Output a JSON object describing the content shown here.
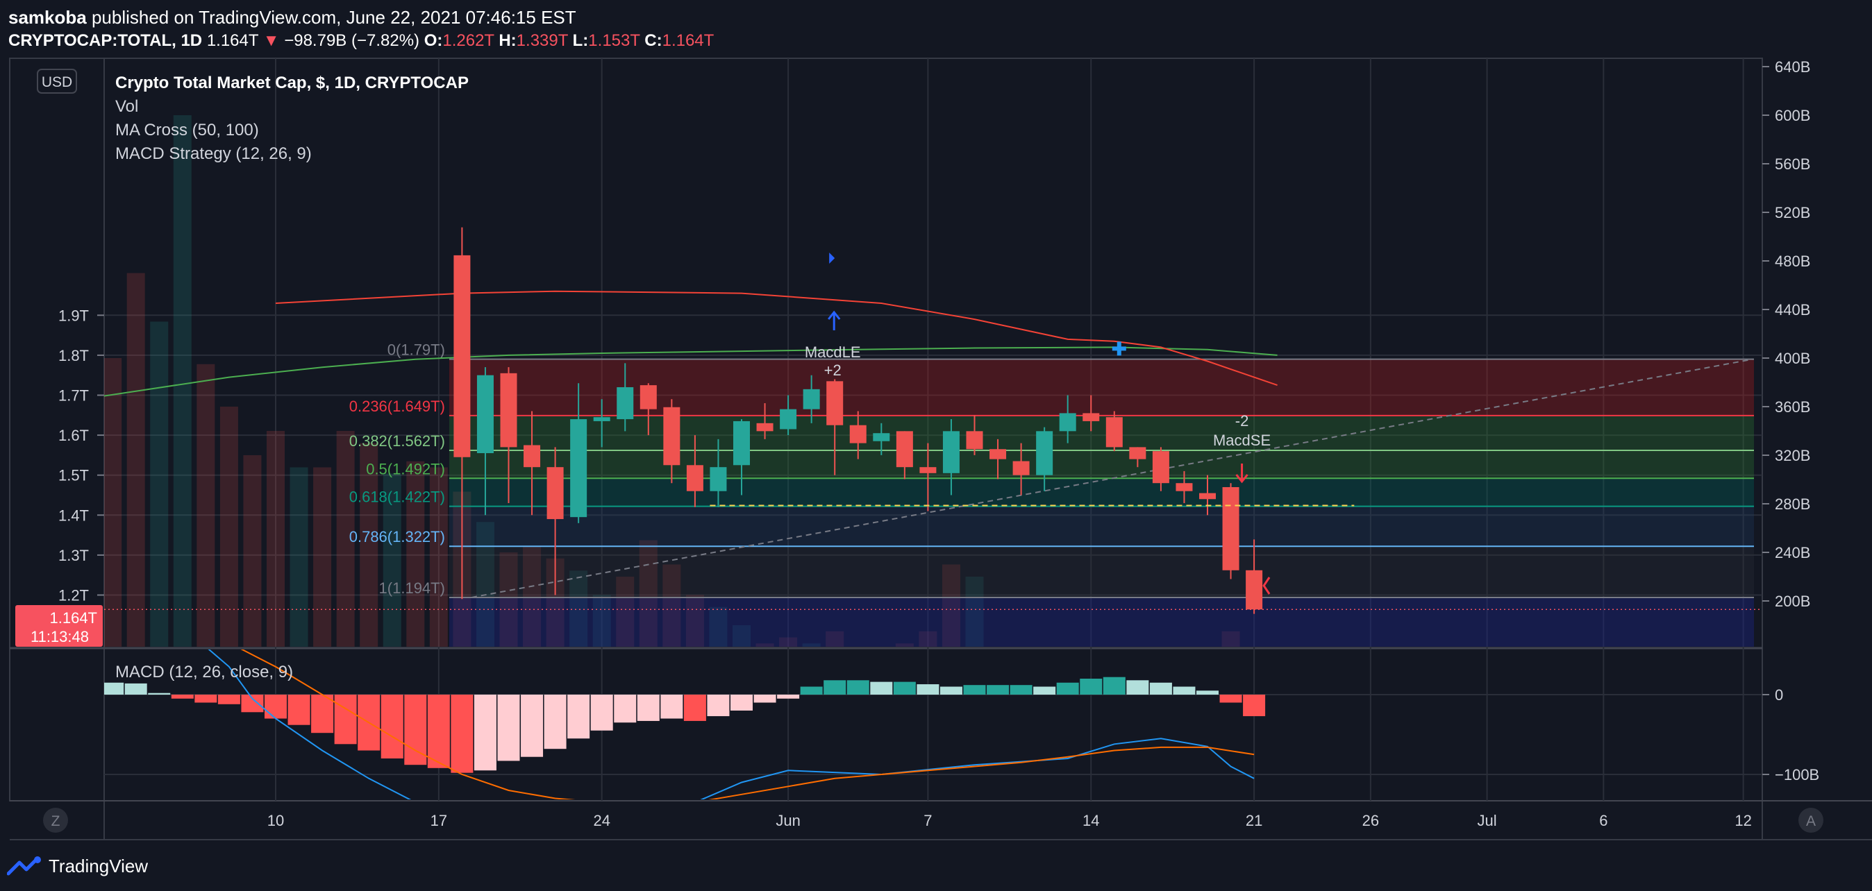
{
  "header": {
    "author": "samkoba",
    "published": " published on TradingView.com, June 22, 2021 07:46:15 EST",
    "symbol": "CRYPTOCAP:TOTAL, 1D",
    "last": "1.164T",
    "change": "−98.79B (−7.82%)",
    "o_label": "O:",
    "o_value": "1.262T",
    "h_label": "H:",
    "h_value": "1.339T",
    "l_label": "L:",
    "l_value": "1.153T",
    "c_label": "C:",
    "c_value": "1.164T"
  },
  "legend": {
    "title": "Crypto Total Market Cap, $, 1D, CRYPTOCAP",
    "vol": "Vol",
    "ma": "MA Cross (50, 100)",
    "macd_strategy": "MACD Strategy (12, 26, 9)",
    "macd_pane": "MACD (12, 26, close, 9)"
  },
  "currency_button": "USD",
  "price_tag": {
    "value": "1.164T",
    "countdown": "11:13:48"
  },
  "zoom_z": "Z",
  "auto_a": "A",
  "footer": {
    "brand": "TradingView"
  },
  "colors": {
    "bg": "#131722",
    "up": "#26a69a",
    "down": "#ef5350",
    "grid": "#2a2e39",
    "ma_short": "#4caf50",
    "ma_long": "#f44336",
    "macd_line": "#2196f3",
    "signal_line": "#ff6d00"
  },
  "chart_data": {
    "type": "candlestick",
    "price_axis": {
      "ticks": [
        "1.2T",
        "1.3T",
        "1.4T",
        "1.5T",
        "1.6T",
        "1.7T",
        "1.8T",
        "1.9T"
      ],
      "values": [
        1.2,
        1.3,
        1.4,
        1.5,
        1.6,
        1.7,
        1.8,
        1.9
      ]
    },
    "volume_axis": {
      "ticks": [
        "200B",
        "240B",
        "280B",
        "320B",
        "360B",
        "400B",
        "440B",
        "480B",
        "520B",
        "560B",
        "600B",
        "640B"
      ],
      "values": [
        200,
        240,
        280,
        320,
        360,
        400,
        440,
        480,
        520,
        560,
        600,
        640
      ]
    },
    "macd_axis": {
      "ticks": [
        "0",
        "−100B"
      ],
      "values": [
        0,
        -100
      ]
    },
    "time_axis": {
      "labels": [
        "10",
        "17",
        "24",
        "Jun",
        "7",
        "14",
        "21",
        "26",
        "Jul",
        "6",
        "12"
      ],
      "day_offsets": [
        0,
        7,
        14,
        22,
        28,
        35,
        42,
        47,
        52,
        57,
        63
      ]
    },
    "candles": [
      {
        "d": 8,
        "o": 2.05,
        "h": 2.12,
        "l": 1.19,
        "c": 1.545
      },
      {
        "d": 9,
        "o": 1.555,
        "h": 1.77,
        "l": 1.4,
        "c": 1.75
      },
      {
        "d": 10,
        "o": 1.755,
        "h": 1.77,
        "l": 1.43,
        "c": 1.57
      },
      {
        "d": 11,
        "o": 1.575,
        "h": 1.66,
        "l": 1.4,
        "c": 1.52
      },
      {
        "d": 12,
        "o": 1.52,
        "h": 1.57,
        "l": 1.2,
        "c": 1.39
      },
      {
        "d": 13,
        "o": 1.395,
        "h": 1.73,
        "l": 1.38,
        "c": 1.64
      },
      {
        "d": 14,
        "o": 1.635,
        "h": 1.69,
        "l": 1.57,
        "c": 1.645
      },
      {
        "d": 15,
        "o": 1.64,
        "h": 1.78,
        "l": 1.61,
        "c": 1.72
      },
      {
        "d": 16,
        "o": 1.725,
        "h": 1.73,
        "l": 1.6,
        "c": 1.665
      },
      {
        "d": 17,
        "o": 1.67,
        "h": 1.69,
        "l": 1.48,
        "c": 1.525
      },
      {
        "d": 18,
        "o": 1.525,
        "h": 1.6,
        "l": 1.42,
        "c": 1.46
      },
      {
        "d": 19,
        "o": 1.46,
        "h": 1.59,
        "l": 1.42,
        "c": 1.52
      },
      {
        "d": 20,
        "o": 1.525,
        "h": 1.64,
        "l": 1.45,
        "c": 1.635
      },
      {
        "d": 21,
        "o": 1.63,
        "h": 1.68,
        "l": 1.59,
        "c": 1.61
      },
      {
        "d": 22,
        "o": 1.615,
        "h": 1.7,
        "l": 1.6,
        "c": 1.665
      },
      {
        "d": 23,
        "o": 1.665,
        "h": 1.75,
        "l": 1.63,
        "c": 1.715
      },
      {
        "d": 24,
        "o": 1.735,
        "h": 1.74,
        "l": 1.5,
        "c": 1.625
      },
      {
        "d": 25,
        "o": 1.625,
        "h": 1.66,
        "l": 1.54,
        "c": 1.58
      },
      {
        "d": 26,
        "o": 1.585,
        "h": 1.63,
        "l": 1.55,
        "c": 1.605
      },
      {
        "d": 27,
        "o": 1.61,
        "h": 1.61,
        "l": 1.49,
        "c": 1.52
      },
      {
        "d": 28,
        "o": 1.52,
        "h": 1.58,
        "l": 1.41,
        "c": 1.505
      },
      {
        "d": 29,
        "o": 1.505,
        "h": 1.64,
        "l": 1.45,
        "c": 1.61
      },
      {
        "d": 30,
        "o": 1.61,
        "h": 1.65,
        "l": 1.55,
        "c": 1.565
      },
      {
        "d": 31,
        "o": 1.565,
        "h": 1.59,
        "l": 1.49,
        "c": 1.54
      },
      {
        "d": 32,
        "o": 1.535,
        "h": 1.58,
        "l": 1.45,
        "c": 1.5
      },
      {
        "d": 33,
        "o": 1.5,
        "h": 1.62,
        "l": 1.46,
        "c": 1.61
      },
      {
        "d": 34,
        "o": 1.61,
        "h": 1.7,
        "l": 1.58,
        "c": 1.655
      },
      {
        "d": 35,
        "o": 1.655,
        "h": 1.7,
        "l": 1.61,
        "c": 1.635
      },
      {
        "d": 36,
        "o": 1.645,
        "h": 1.66,
        "l": 1.56,
        "c": 1.57
      },
      {
        "d": 37,
        "o": 1.57,
        "h": 1.57,
        "l": 1.52,
        "c": 1.54
      },
      {
        "d": 38,
        "o": 1.56,
        "h": 1.57,
        "l": 1.46,
        "c": 1.48
      },
      {
        "d": 39,
        "o": 1.48,
        "h": 1.51,
        "l": 1.43,
        "c": 1.46
      },
      {
        "d": 40,
        "o": 1.455,
        "h": 1.5,
        "l": 1.4,
        "c": 1.44
      },
      {
        "d": 41,
        "o": 1.47,
        "h": 1.48,
        "l": 1.24,
        "c": 1.262
      },
      {
        "d": 42,
        "o": 1.262,
        "h": 1.339,
        "l": 1.153,
        "c": 1.164
      }
    ],
    "volume": [
      {
        "d": -14,
        "v": 330,
        "up": true
      },
      {
        "d": -13,
        "v": 500,
        "up": true
      },
      {
        "d": -12,
        "v": 530,
        "up": false
      },
      {
        "d": -11,
        "v": 540,
        "up": true
      },
      {
        "d": -10,
        "v": 515,
        "up": true
      },
      {
        "d": -9,
        "v": 520,
        "up": false
      },
      {
        "d": -8,
        "v": 515,
        "up": false
      },
      {
        "d": -7,
        "v": 400,
        "up": false
      },
      {
        "d": -6,
        "v": 470,
        "up": false
      },
      {
        "d": -5,
        "v": 430,
        "up": true
      },
      {
        "d": -4,
        "v": 600,
        "up": true
      },
      {
        "d": -3,
        "v": 395,
        "up": false
      },
      {
        "d": -2,
        "v": 360,
        "up": false
      },
      {
        "d": -1,
        "v": 320,
        "up": false
      },
      {
        "d": 0,
        "v": 340,
        "up": false
      },
      {
        "d": 1,
        "v": 310,
        "up": true
      },
      {
        "d": 2,
        "v": 310,
        "up": false
      },
      {
        "d": 3,
        "v": 340,
        "up": false
      },
      {
        "d": 4,
        "v": 330,
        "up": false
      },
      {
        "d": 5,
        "v": 305,
        "up": true
      },
      {
        "d": 6,
        "v": 315,
        "up": false
      },
      {
        "d": 7,
        "v": 310,
        "up": false
      },
      {
        "d": 8,
        "v": 290,
        "up": false
      },
      {
        "d": 9,
        "v": 265,
        "up": true
      },
      {
        "d": 10,
        "v": 240,
        "up": false
      },
      {
        "d": 11,
        "v": 245,
        "up": false
      },
      {
        "d": 12,
        "v": 235,
        "up": false
      },
      {
        "d": 13,
        "v": 225,
        "up": true
      },
      {
        "d": 14,
        "v": 205,
        "up": true
      },
      {
        "d": 15,
        "v": 220,
        "up": false
      },
      {
        "d": 16,
        "v": 250,
        "up": false
      },
      {
        "d": 17,
        "v": 230,
        "up": false
      },
      {
        "d": 18,
        "v": 205,
        "up": false
      },
      {
        "d": 19,
        "v": 195,
        "up": true
      },
      {
        "d": 20,
        "v": 180,
        "up": true
      },
      {
        "d": 21,
        "v": 165,
        "up": false
      },
      {
        "d": 22,
        "v": 170,
        "up": false
      },
      {
        "d": 23,
        "v": 165,
        "up": true
      },
      {
        "d": 24,
        "v": 175,
        "up": false
      },
      {
        "d": 25,
        "v": 160,
        "up": false
      },
      {
        "d": 26,
        "v": 150,
        "up": true
      },
      {
        "d": 27,
        "v": 165,
        "up": false
      },
      {
        "d": 28,
        "v": 175,
        "up": false
      },
      {
        "d": 29,
        "v": 230,
        "up": false
      },
      {
        "d": 30,
        "v": 220,
        "up": true
      },
      {
        "d": 31,
        "v": 150,
        "up": false
      },
      {
        "d": 32,
        "v": 140,
        "up": false
      },
      {
        "d": 33,
        "v": 140,
        "up": true
      },
      {
        "d": 34,
        "v": 140,
        "up": true
      },
      {
        "d": 35,
        "v": 130,
        "up": false
      },
      {
        "d": 36,
        "v": 145,
        "up": false
      },
      {
        "d": 37,
        "v": 130,
        "up": false
      },
      {
        "d": 38,
        "v": 130,
        "up": false
      },
      {
        "d": 39,
        "v": 130,
        "up": false
      },
      {
        "d": 40,
        "v": 150,
        "up": false
      },
      {
        "d": 41,
        "v": 175,
        "up": false
      },
      {
        "d": 42,
        "v": 160,
        "up": false
      }
    ],
    "ma_short_50": [
      {
        "d": -14,
        "p": 1.642
      },
      {
        "d": -10,
        "p": 1.675
      },
      {
        "d": -6,
        "p": 1.71
      },
      {
        "d": -2,
        "p": 1.745
      },
      {
        "d": 2,
        "p": 1.77
      },
      {
        "d": 6,
        "p": 1.79
      },
      {
        "d": 10,
        "p": 1.8
      },
      {
        "d": 14,
        "p": 1.805
      },
      {
        "d": 20,
        "p": 1.81
      },
      {
        "d": 26,
        "p": 1.815
      },
      {
        "d": 30,
        "p": 1.818
      },
      {
        "d": 36,
        "p": 1.82
      },
      {
        "d": 40,
        "p": 1.814
      },
      {
        "d": 43,
        "p": 1.8
      }
    ],
    "ma_long_100": [
      {
        "d": 0,
        "p": 1.93
      },
      {
        "d": 8,
        "p": 1.955
      },
      {
        "d": 12,
        "p": 1.96
      },
      {
        "d": 20,
        "p": 1.955
      },
      {
        "d": 26,
        "p": 1.93
      },
      {
        "d": 30,
        "p": 1.89
      },
      {
        "d": 34,
        "p": 1.84
      },
      {
        "d": 36,
        "p": 1.835
      },
      {
        "d": 38,
        "p": 1.82
      },
      {
        "d": 40,
        "p": 1.785
      },
      {
        "d": 43,
        "p": 1.725
      }
    ],
    "ma_cross_day": 36,
    "fib_levels": [
      {
        "label": "0(1.79T)",
        "value": 1.79,
        "color": "#787b86"
      },
      {
        "label": "0.236(1.649T)",
        "value": 1.649,
        "color": "#f23645"
      },
      {
        "label": "0.382(1.562T)",
        "value": 1.562,
        "color": "#81c784"
      },
      {
        "label": "0.5(1.492T)",
        "value": 1.492,
        "color": "#4caf50"
      },
      {
        "label": "0.618(1.422T)",
        "value": 1.422,
        "color": "#089981"
      },
      {
        "label": "0.786(1.322T)",
        "value": 1.322,
        "color": "#64b5f6"
      },
      {
        "label": "1(1.194T)",
        "value": 1.194,
        "color": "#787b86"
      }
    ],
    "macd_hist": [
      {
        "d": -14,
        "v": 22
      },
      {
        "d": -13,
        "v": 20
      },
      {
        "d": -12,
        "v": 20
      },
      {
        "d": -11,
        "v": 20
      },
      {
        "d": -10,
        "v": 18
      },
      {
        "d": -9,
        "v": 18
      },
      {
        "d": -8,
        "v": 17
      },
      {
        "d": -7,
        "v": 15
      },
      {
        "d": -6,
        "v": 14
      },
      {
        "d": -5,
        "v": 2
      },
      {
        "d": -4,
        "v": -5
      },
      {
        "d": -3,
        "v": -10
      },
      {
        "d": -2,
        "v": -12
      },
      {
        "d": -1,
        "v": -22
      },
      {
        "d": 0,
        "v": -30
      },
      {
        "d": 1,
        "v": -38
      },
      {
        "d": 2,
        "v": -48
      },
      {
        "d": 3,
        "v": -62
      },
      {
        "d": 4,
        "v": -70
      },
      {
        "d": 5,
        "v": -80
      },
      {
        "d": 6,
        "v": -88
      },
      {
        "d": 7,
        "v": -92
      },
      {
        "d": 8,
        "v": -98
      },
      {
        "d": 9,
        "v": -95
      },
      {
        "d": 10,
        "v": -83
      },
      {
        "d": 11,
        "v": -78
      },
      {
        "d": 12,
        "v": -68
      },
      {
        "d": 13,
        "v": -55
      },
      {
        "d": 14,
        "v": -45
      },
      {
        "d": 15,
        "v": -35
      },
      {
        "d": 16,
        "v": -33
      },
      {
        "d": 17,
        "v": -30
      },
      {
        "d": 18,
        "v": -33
      },
      {
        "d": 19,
        "v": -27
      },
      {
        "d": 20,
        "v": -20
      },
      {
        "d": 21,
        "v": -10
      },
      {
        "d": 22,
        "v": -5
      },
      {
        "d": 23,
        "v": 10
      },
      {
        "d": 24,
        "v": 18
      },
      {
        "d": 25,
        "v": 18
      },
      {
        "d": 26,
        "v": 16
      },
      {
        "d": 27,
        "v": 16
      },
      {
        "d": 28,
        "v": 13
      },
      {
        "d": 29,
        "v": 10
      },
      {
        "d": 30,
        "v": 12
      },
      {
        "d": 31,
        "v": 12
      },
      {
        "d": 32,
        "v": 12
      },
      {
        "d": 33,
        "v": 10
      },
      {
        "d": 34,
        "v": 15
      },
      {
        "d": 35,
        "v": 20
      },
      {
        "d": 36,
        "v": 22
      },
      {
        "d": 37,
        "v": 18
      },
      {
        "d": 38,
        "v": 15
      },
      {
        "d": 39,
        "v": 10
      },
      {
        "d": 40,
        "v": 5
      },
      {
        "d": 41,
        "v": -10
      },
      {
        "d": 42,
        "v": -27
      }
    ],
    "macd_line": [
      {
        "d": -10,
        "v": 160
      },
      {
        "d": -6,
        "v": 100
      },
      {
        "d": -3,
        "v": 60
      },
      {
        "d": -2,
        "v": 35
      },
      {
        "d": -1,
        "v": -5
      },
      {
        "d": 0,
        "v": -30
      },
      {
        "d": 2,
        "v": -70
      },
      {
        "d": 4,
        "v": -105
      },
      {
        "d": 6,
        "v": -135
      },
      {
        "d": 8,
        "v": -160
      },
      {
        "d": 12,
        "v": -185
      },
      {
        "d": 16,
        "v": -190
      },
      {
        "d": 18,
        "v": -135
      },
      {
        "d": 20,
        "v": -110
      },
      {
        "d": 22,
        "v": -95
      },
      {
        "d": 26,
        "v": -100
      },
      {
        "d": 30,
        "v": -88
      },
      {
        "d": 34,
        "v": -80
      },
      {
        "d": 36,
        "v": -62
      },
      {
        "d": 38,
        "v": -55
      },
      {
        "d": 40,
        "v": -65
      },
      {
        "d": 41,
        "v": -90
      },
      {
        "d": 42,
        "v": -105
      }
    ],
    "signal_line": [
      {
        "d": -2,
        "v": 65
      },
      {
        "d": 0,
        "v": 35
      },
      {
        "d": 2,
        "v": 0
      },
      {
        "d": 4,
        "v": -35
      },
      {
        "d": 6,
        "v": -70
      },
      {
        "d": 8,
        "v": -100
      },
      {
        "d": 10,
        "v": -120
      },
      {
        "d": 12,
        "v": -130
      },
      {
        "d": 14,
        "v": -135
      },
      {
        "d": 16,
        "v": -138
      },
      {
        "d": 18,
        "v": -135
      },
      {
        "d": 20,
        "v": -125
      },
      {
        "d": 22,
        "v": -115
      },
      {
        "d": 24,
        "v": -105
      },
      {
        "d": 26,
        "v": -100
      },
      {
        "d": 28,
        "v": -95
      },
      {
        "d": 30,
        "v": -90
      },
      {
        "d": 32,
        "v": -85
      },
      {
        "d": 34,
        "v": -78
      },
      {
        "d": 36,
        "v": -70
      },
      {
        "d": 38,
        "v": -66
      },
      {
        "d": 40,
        "v": -66
      },
      {
        "d": 42,
        "v": -75
      }
    ],
    "signals": {
      "long": {
        "d": 24,
        "price": 1.63,
        "label": "MacdLE",
        "qty": "+2"
      },
      "short": {
        "d": 41,
        "price": 1.41,
        "label": "MacdSE",
        "qty": "-2"
      },
      "short_pending_price": 1.424
    },
    "trend_line": {
      "from_d": 9,
      "from_p": 1.194,
      "to_d": 64,
      "to_p": 1.79
    }
  }
}
